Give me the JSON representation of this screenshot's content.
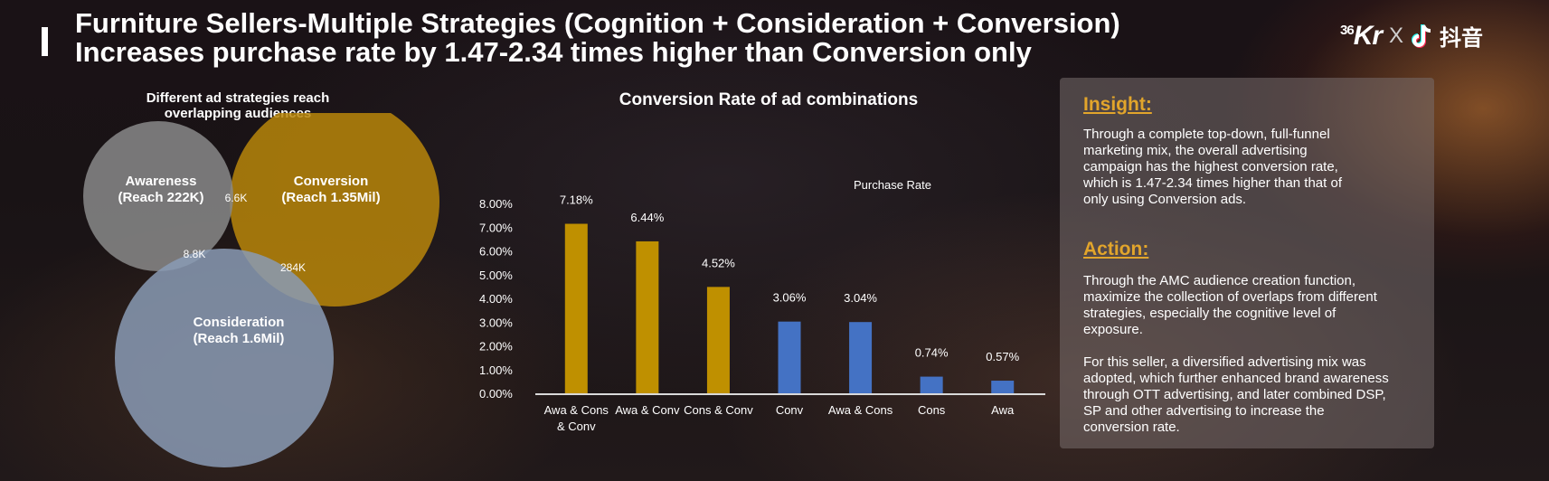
{
  "header": {
    "title_line1": "Furniture Sellers-Multiple Strategies (Cognition + Consideration + Conversion)",
    "title_line2": "Increases purchase rate by 1.47-2.34 times higher than Conversion only"
  },
  "logo": {
    "brand1": "36Kr",
    "brand1_sup": "36",
    "brand1_main": "Kr",
    "separator": "X",
    "brand2": "抖音",
    "brand2_icon": "douyin-note-icon"
  },
  "venn": {
    "title_line1": "Different ad strategies reach",
    "title_line2": "overlapping audiences",
    "circles": [
      {
        "name": "Awareness",
        "reach": "(Reach 222K)",
        "color": "#8a8a8a"
      },
      {
        "name": "Conversion",
        "reach": "(Reach 1.35Mil)",
        "color": "#b8860b"
      },
      {
        "name": "Consideration",
        "reach": "(Reach 1.6Mil)",
        "color": "#8a9bb5"
      }
    ],
    "overlaps": {
      "awareness_conversion": "6.6K",
      "awareness_consideration": "8.8K",
      "conversion_consideration": "284K"
    }
  },
  "chart_title": "Conversion Rate of ad combinations",
  "chart_data": {
    "type": "bar",
    "title": "Conversion Rate of ad combinations",
    "legend": "Purchase Rate",
    "categories": [
      "Awa & Cons & Conv",
      "Awa & Conv",
      "Cons & Conv",
      "Conv",
      "Awa & Cons",
      "Cons",
      "Awa"
    ],
    "category_lines": [
      [
        "Awa & Cons",
        "& Conv"
      ],
      [
        "Awa & Conv"
      ],
      [
        "Cons & Conv"
      ],
      [
        "Conv"
      ],
      [
        "Awa & Cons"
      ],
      [
        "Cons"
      ],
      [
        "Awa"
      ]
    ],
    "values": [
      7.18,
      6.44,
      4.52,
      3.06,
      3.04,
      0.74,
      0.57
    ],
    "value_labels": [
      "7.18%",
      "6.44%",
      "4.52%",
      "3.06%",
      "3.04%",
      "0.74%",
      "0.57%"
    ],
    "colors": [
      "#bf9000",
      "#bf9000",
      "#bf9000",
      "#4472c4",
      "#4472c4",
      "#4472c4",
      "#4472c4"
    ],
    "ylim": [
      0,
      8
    ],
    "yticks": [
      "0.00%",
      "1.00%",
      "2.00%",
      "3.00%",
      "4.00%",
      "5.00%",
      "6.00%",
      "7.00%",
      "8.00%"
    ],
    "grid": false
  },
  "panel": {
    "insight_heading": "Insight:",
    "insight_lines": [
      "Through a complete top-down, full-funnel",
      "marketing mix, the overall advertising",
      "campaign has the highest conversion rate,",
      "which is 1.47-2.34 times higher than that of",
      "only using Conversion ads."
    ],
    "action_heading": "Action:",
    "action_lines": [
      "Through the AMC audience creation function,",
      "maximize the collection of overlaps from different",
      "strategies, especially the cognitive level of",
      "exposure."
    ],
    "seller_lines": [
      "For this seller, a diversified advertising mix was",
      "adopted, which further enhanced brand awareness",
      "through OTT advertising, and later combined DSP,",
      "SP and other advertising to increase the",
      "conversion rate."
    ],
    "heading_color": "#e2a52b"
  }
}
